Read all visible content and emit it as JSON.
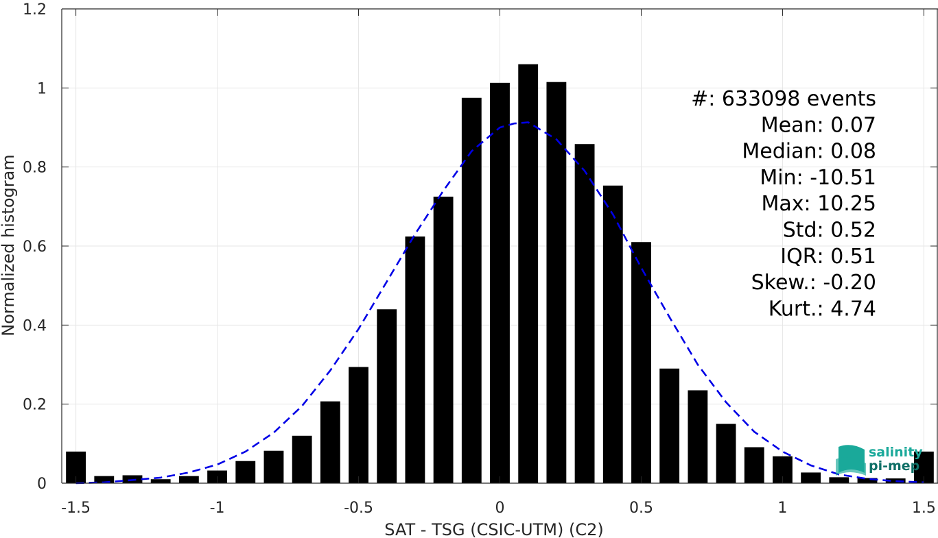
{
  "chart_data": {
    "type": "bar",
    "xlabel": "SAT - TSG (CSIC-UTM) (C2)",
    "ylabel": "Normalized histogram",
    "xlim": [
      -1.55,
      1.55
    ],
    "ylim": [
      0,
      1.2
    ],
    "xticks": [
      -1.5,
      -1,
      -0.5,
      0,
      0.5,
      1,
      1.5
    ],
    "xtick_labels": [
      "-1.5",
      "-1",
      "-0.5",
      "0",
      "0.5",
      "1",
      "1.5"
    ],
    "yticks": [
      0,
      0.2,
      0.4,
      0.6,
      0.8,
      1,
      1.2
    ],
    "ytick_labels": [
      "0",
      "0.2",
      "0.4",
      "0.6",
      "0.8",
      "1",
      "1.2"
    ],
    "grid": true,
    "bar_width": 0.07,
    "bars": {
      "x": [
        -1.5,
        -1.4,
        -1.3,
        -1.2,
        -1.1,
        -1.0,
        -0.9,
        -0.8,
        -0.7,
        -0.6,
        -0.5,
        -0.4,
        -0.3,
        -0.2,
        -0.1,
        0.0,
        0.1,
        0.2,
        0.3,
        0.4,
        0.5,
        0.6,
        0.7,
        0.8,
        0.9,
        1.0,
        1.1,
        1.2,
        1.3,
        1.4,
        1.5
      ],
      "values": [
        0.08,
        0.018,
        0.02,
        0.01,
        0.018,
        0.032,
        0.056,
        0.082,
        0.12,
        0.207,
        0.294,
        0.44,
        0.624,
        0.725,
        0.975,
        1.013,
        1.06,
        1.015,
        0.858,
        0.753,
        0.61,
        0.29,
        0.235,
        0.15,
        0.091,
        0.068,
        0.027,
        0.015,
        0.013,
        0.012,
        0.08
      ],
      "color": "#000000"
    },
    "fit_curve": {
      "style": "dashed",
      "color": "#0000e6",
      "x": [
        -1.5,
        -1.4,
        -1.3,
        -1.2,
        -1.1,
        -1.0,
        -0.9,
        -0.8,
        -0.7,
        -0.6,
        -0.5,
        -0.4,
        -0.3,
        -0.2,
        -0.1,
        0.0,
        0.05,
        0.1,
        0.2,
        0.3,
        0.4,
        0.5,
        0.6,
        0.7,
        0.8,
        0.9,
        1.0,
        1.1,
        1.2,
        1.3,
        1.4,
        1.5
      ],
      "y": [
        0.0,
        0.002,
        0.008,
        0.014,
        0.027,
        0.047,
        0.08,
        0.128,
        0.195,
        0.285,
        0.39,
        0.51,
        0.63,
        0.74,
        0.84,
        0.9,
        0.91,
        0.913,
        0.87,
        0.79,
        0.68,
        0.545,
        0.42,
        0.3,
        0.205,
        0.13,
        0.08,
        0.045,
        0.022,
        0.011,
        0.005,
        0.002
      ]
    },
    "stats": [
      {
        "label": "#  ",
        "value": ": 633098 events"
      },
      {
        "label": "Mean ",
        "value": ": 0.07"
      },
      {
        "label": "Median ",
        "value": ": 0.08"
      },
      {
        "label": "Min ",
        "value": ": -10.51"
      },
      {
        "label": "Max ",
        "value": ": 10.25"
      },
      {
        "label": "Std ",
        "value": ": 0.52"
      },
      {
        "label": "IQR ",
        "value": ": 0.51"
      },
      {
        "label": "Skew. ",
        "value": ": -0.20"
      },
      {
        "label": "Kurt. ",
        "value": ": 4.74"
      }
    ],
    "stats_placement": "top-right"
  },
  "logo": {
    "line1": "salinity",
    "line2": "pi-mep",
    "color": "#1aa99a",
    "color_dark": "#0e6f66"
  },
  "colors": {
    "axis": "#262626",
    "grid": "#e6e6e6"
  }
}
